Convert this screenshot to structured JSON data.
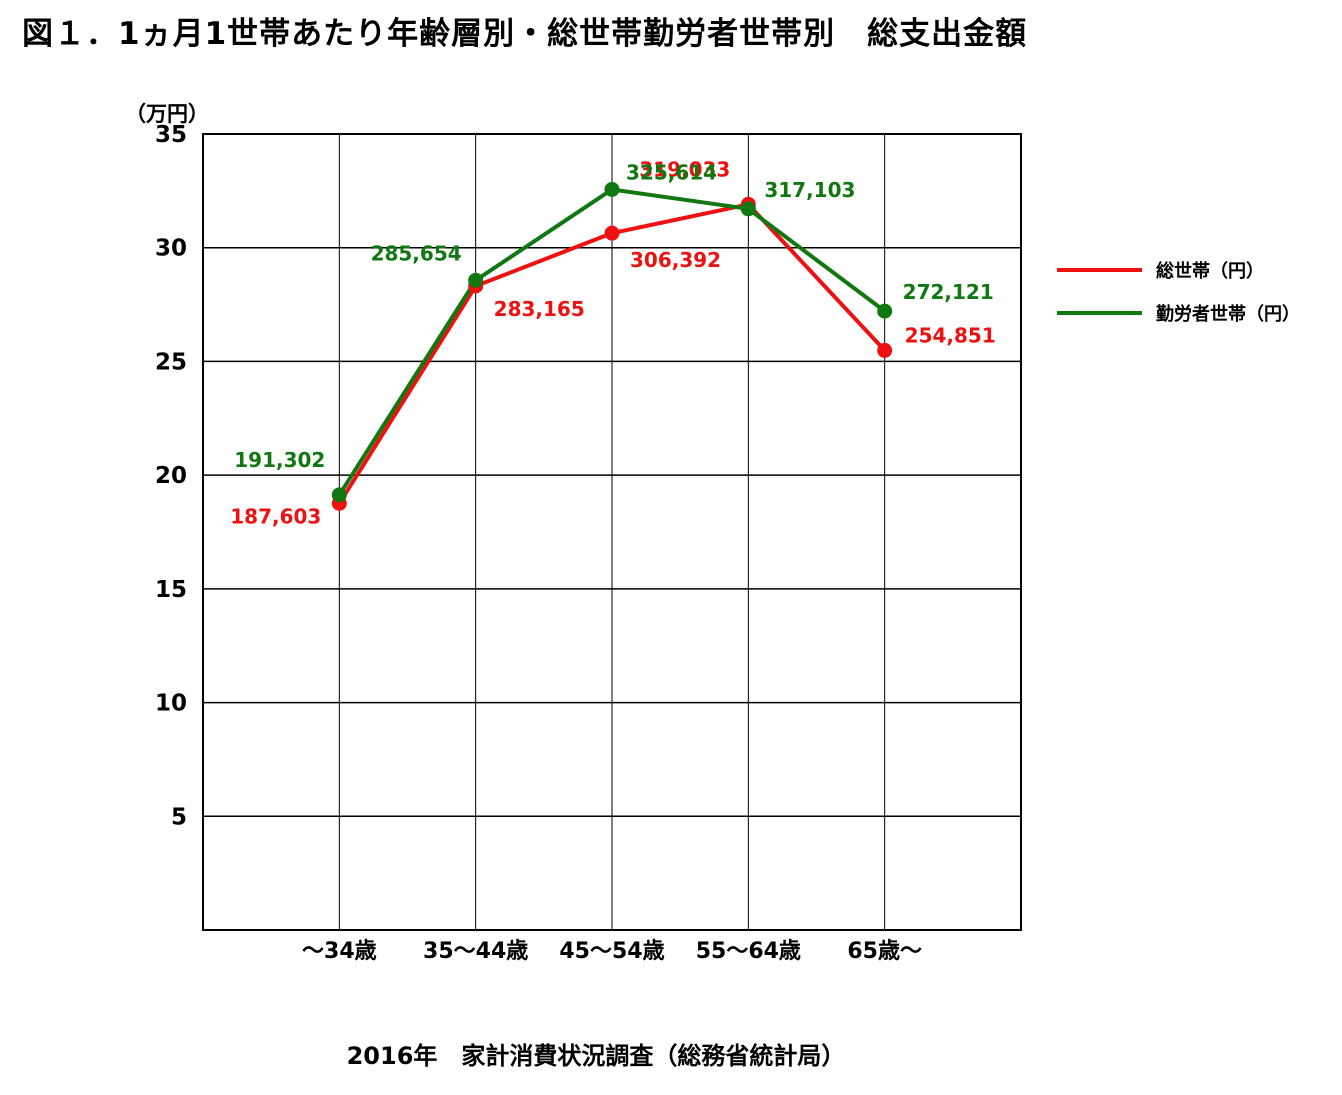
{
  "title": "図１．1ヵ月1世帯あたり年齢層別・総世帯勤労者世帯別　総支出金額",
  "source": "2016年　家計消費状況調査（総務省統計局）",
  "chart_data": {
    "type": "line",
    "title": "図１．1ヵ月1世帯あたり年齢層別・総世帯勤労者世帯別　総支出金額",
    "ylabel": "（万円）",
    "xlabel": "",
    "categories": [
      "～34歳",
      "35～44歳",
      "45～54歳",
      "55～64歳",
      "65歳～"
    ],
    "ylim": [
      0,
      35
    ],
    "yticks": [
      5,
      10,
      15,
      20,
      25,
      30,
      35
    ],
    "grid": true,
    "legend_position": "right",
    "series": [
      {
        "name": "総世帯（円）",
        "color": "#ee1111",
        "values": [
          18.7603,
          28.3165,
          30.6392,
          31.9033,
          25.4851
        ],
        "labels": [
          "187,603",
          "283,165",
          "306,392",
          "319,033",
          "254,851"
        ]
      },
      {
        "name": "勤労者世帯（円）",
        "color": "#117711",
        "values": [
          19.1302,
          28.5654,
          32.5614,
          31.7103,
          27.2121
        ],
        "labels": [
          "191,302",
          "285,654",
          "325,614",
          "317,103",
          "272,121"
        ]
      }
    ]
  }
}
